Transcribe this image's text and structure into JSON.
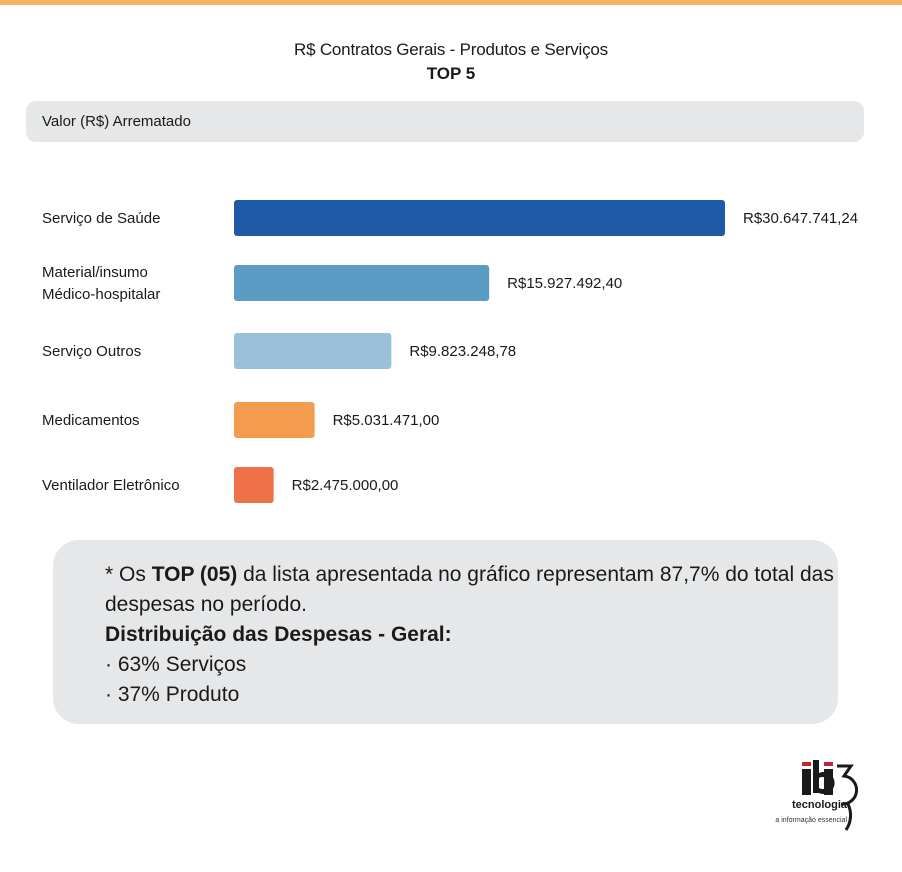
{
  "title": "R$ Contratos Gerais - Produtos e Serviços",
  "subtitle": "TOP 5",
  "header": "Valor (R$) Arrematado",
  "chart_data": {
    "type": "bar",
    "orientation": "horizontal",
    "title": "R$ Contratos Gerais - Produtos e Serviços",
    "subtitle": "TOP 5",
    "categories": [
      [
        "Serviço de Saúde"
      ],
      [
        "Material/insumo",
        "Médico-hospitalar"
      ],
      [
        "Serviço Outros"
      ],
      [
        "Medicamentos"
      ],
      [
        "Ventilador Eletrônico"
      ]
    ],
    "values": [
      30647741.24,
      15927492.4,
      9823248.78,
      5031471.0,
      2475000.0
    ],
    "value_labels": [
      "R$30.647.741,24",
      "R$15.927.492,40",
      "R$9.823.248,78",
      "R$5.031.471,00",
      "R$2.475.000,00"
    ],
    "colors": [
      "#1f5aa6",
      "#5b9bc4",
      "#9bc0da",
      "#f39c4e",
      "#ef7147"
    ],
    "xlabel": "Valor (R$) Arrematado",
    "xlim": [
      0,
      30647741.24
    ],
    "grid": false,
    "legend": "none"
  },
  "note": {
    "line1_prefix": "* Os ",
    "line1_bold": "TOP (05)",
    "line1_suffix": " da lista apresentada no gráfico representam 87,7% do total das",
    "line2": "despesas no período.",
    "line3": "Distribuição das Despesas - Geral:",
    "line4": "· 63% Serviços",
    "line5": "· 37% Produto"
  },
  "logo": {
    "brand": "ibi3",
    "name": "tecnologia",
    "tagline": "a informação essencial",
    "accent": "#c0262d"
  }
}
